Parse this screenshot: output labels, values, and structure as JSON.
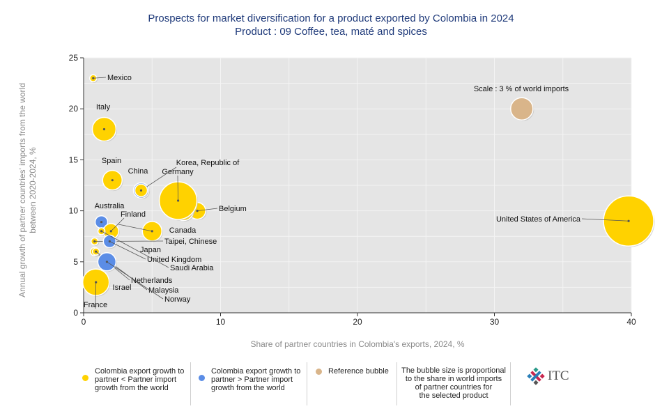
{
  "title_line1": "Prospects for market diversification for a product exported by Colombia in 2024",
  "title_line2": "Product : 09 Coffee, tea, maté and spices",
  "colors": {
    "partner_lower": "#ffd200",
    "partner_higher": "#5b8de6",
    "reference": "#d9b58a",
    "plot_bg": "#e5e5e5",
    "title": "#1f3a7a"
  },
  "chart_data": {
    "type": "scatter",
    "xlabel": "Share of partner countries in Colombia's exports, 2024, %",
    "ylabel": "Annual growth of partner countries' imports from the world between 2020-2024, %",
    "xlim": [
      0,
      40
    ],
    "ylim": [
      0,
      25
    ],
    "xticks": [
      0,
      10,
      20,
      30,
      40
    ],
    "yticks": [
      0,
      5,
      10,
      15,
      20,
      25
    ],
    "grid": true,
    "legend_position": "bottom",
    "points": [
      {
        "label": "United States of America",
        "x": 39.8,
        "y": 9.0,
        "size": 36,
        "group": "lower"
      },
      {
        "label": "Belgium",
        "x": 8.3,
        "y": 10.0,
        "size": 12,
        "group": "lower"
      },
      {
        "label": "Canada",
        "x": 7.3,
        "y": 10.0,
        "size": 14,
        "group": "lower"
      },
      {
        "label": "Germany",
        "x": 6.9,
        "y": 11.0,
        "size": 27,
        "group": "lower"
      },
      {
        "label": "Korea, Republic of",
        "x": 4.2,
        "y": 12.0,
        "size": 11,
        "group": "higher"
      },
      {
        "label": "China",
        "x": 4.2,
        "y": 12.0,
        "size": 9,
        "group": "lower"
      },
      {
        "label": "Japan",
        "x": 5.0,
        "y": 8.0,
        "size": 14,
        "group": "lower"
      },
      {
        "label": "Spain",
        "x": 2.1,
        "y": 13.0,
        "size": 14,
        "group": "lower"
      },
      {
        "label": "Italy",
        "x": 1.5,
        "y": 18.0,
        "size": 17,
        "group": "lower"
      },
      {
        "label": "Mexico",
        "x": 0.7,
        "y": 23.0,
        "size": 5,
        "group": "lower"
      },
      {
        "label": "Australia",
        "x": 1.3,
        "y": 8.9,
        "size": 9,
        "group": "higher"
      },
      {
        "label": "Finland",
        "x": 2.0,
        "y": 8.0,
        "size": 11,
        "group": "lower"
      },
      {
        "label": "Taipei, Chinese",
        "x": 0.8,
        "y": 7.0,
        "size": 5,
        "group": "lower"
      },
      {
        "label": "United Kingdom",
        "x": 1.9,
        "y": 7.0,
        "size": 9,
        "group": "higher"
      },
      {
        "label": "Saudi Arabia",
        "x": 1.3,
        "y": 8.0,
        "size": 5,
        "group": "lower"
      },
      {
        "label": "Netherlands",
        "x": 0.8,
        "y": 6.0,
        "size": 6,
        "group": "lower"
      },
      {
        "label": "Malaysia",
        "x": 0.9,
        "y": 6.0,
        "size": 5,
        "group": "lower"
      },
      {
        "label": "Norway",
        "x": 1.7,
        "y": 5.0,
        "size": 13,
        "group": "higher"
      },
      {
        "label": "Israel",
        "x": 0.8,
        "y": 4.0,
        "size": 4,
        "group": "higher"
      },
      {
        "label": "France",
        "x": 0.9,
        "y": 3.0,
        "size": 19,
        "group": "lower"
      }
    ],
    "reference_bubble": {
      "label": "Scale : 3 % of world imports",
      "x": 32.0,
      "y": 20.0,
      "size": 16
    }
  },
  "legend": {
    "item1": "Colombia export growth to\npartner < Partner import\ngrowth from the world",
    "item2": "Colombia export growth to\npartner > Partner import\ngrowth from the world",
    "item3": "Reference bubble",
    "item4": "The bubble size is proportional\nto the share in world imports\nof partner countries for\nthe selected product"
  },
  "logo_text": "ITC"
}
